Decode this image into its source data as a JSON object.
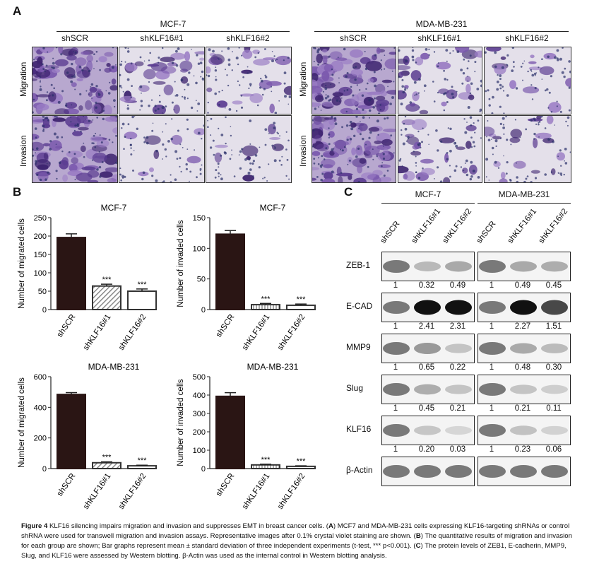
{
  "panelA": {
    "letter": "A",
    "groups": [
      {
        "name": "MCF-7",
        "columns": [
          "shSCR",
          "shKLF16#1",
          "shKLF16#2"
        ]
      },
      {
        "name": "MDA-MB-231",
        "columns": [
          "shSCR",
          "shKLF16#1",
          "shKLF16#2"
        ]
      }
    ],
    "rows": [
      "Migration",
      "Invasion"
    ]
  },
  "panelB": {
    "letter": "B"
  },
  "chart_data": [
    {
      "type": "bar",
      "title": "MCF-7",
      "ylabel": "Number of migrated cells",
      "categories": [
        "shSCR",
        "shKLF16#1",
        "shKLF16#2"
      ],
      "values": [
        196,
        64,
        50
      ],
      "errors": [
        10,
        5,
        6
      ],
      "ylim": [
        0,
        250
      ],
      "yticks": [
        "0",
        "50",
        "100",
        "150",
        "200",
        "250"
      ],
      "significance": [
        "",
        "***",
        "***"
      ],
      "bar_styles": [
        "solid",
        "hatched",
        "open"
      ]
    },
    {
      "type": "bar",
      "title": "MCF-7",
      "ylabel": "Number of invaded cells",
      "categories": [
        "shSCR",
        "shKLF16#1",
        "shKLF16#2"
      ],
      "values": [
        123,
        8,
        7
      ],
      "errors": [
        6,
        2,
        2
      ],
      "ylim": [
        0,
        150
      ],
      "yticks": [
        "0",
        "50",
        "100",
        "150"
      ],
      "significance": [
        "",
        "***",
        "***"
      ],
      "bar_styles": [
        "solid",
        "striped",
        "open"
      ]
    },
    {
      "type": "bar",
      "title": "MDA-MB-231",
      "ylabel": "Number of migrated cells",
      "categories": [
        "shSCR",
        "shKLF16#1",
        "shKLF16#2"
      ],
      "values": [
        484,
        38,
        18
      ],
      "errors": [
        12,
        6,
        4
      ],
      "ylim": [
        0,
        600
      ],
      "yticks": [
        "0",
        "200",
        "400",
        "600"
      ],
      "significance": [
        "",
        "***",
        "***"
      ],
      "bar_styles": [
        "solid",
        "hatched",
        "open"
      ]
    },
    {
      "type": "bar",
      "title": "MDA-MB-231",
      "ylabel": "Number of invaded cells",
      "categories": [
        "shSCR",
        "shKLF16#1",
        "shKLF16#2"
      ],
      "values": [
        393,
        20,
        12
      ],
      "errors": [
        20,
        4,
        3
      ],
      "ylim": [
        0,
        500
      ],
      "yticks": [
        "0",
        "100",
        "200",
        "300",
        "400",
        "500"
      ],
      "significance": [
        "",
        "***",
        "***"
      ],
      "bar_styles": [
        "solid",
        "striped",
        "open"
      ]
    }
  ],
  "panelC": {
    "letter": "C",
    "groups": [
      "MCF-7",
      "MDA-MB-231"
    ],
    "columns": [
      "shSCR",
      "shKLF16#1",
      "shKLF16#2",
      "shSCR",
      "shKLF16#1",
      "shKLF16#2"
    ],
    "rows": [
      {
        "label": "ZEB-1",
        "mcf7": [
          "1",
          "0.32",
          "0.49"
        ],
        "mda": [
          "1",
          "0.49",
          "0.45"
        ]
      },
      {
        "label": "E-CAD",
        "mcf7": [
          "1",
          "2.41",
          "2.31"
        ],
        "mda": [
          "1",
          "2.27",
          "1.51"
        ]
      },
      {
        "label": "MMP9",
        "mcf7": [
          "1",
          "0.65",
          "0.22"
        ],
        "mda": [
          "1",
          "0.48",
          "0.30"
        ]
      },
      {
        "label": "Slug",
        "mcf7": [
          "1",
          "0.45",
          "0.21"
        ],
        "mda": [
          "1",
          "0.21",
          "0.11"
        ]
      },
      {
        "label": "KLF16",
        "mcf7": [
          "1",
          "0.20",
          "0.03"
        ],
        "mda": [
          "1",
          "0.23",
          "0.06"
        ]
      },
      {
        "label": "β-Actin",
        "mcf7": [
          "",
          "",
          ""
        ],
        "mda": [
          "",
          "",
          ""
        ]
      }
    ]
  },
  "caption": {
    "head": "Figure 4",
    "t1": " KLF16 silencing impairs migration and invasion and suppresses EMT in breast cancer cells. (",
    "A": "A",
    "t2": ") MCF7 and MDA-MB-231 cells expressing KLF16-targeting shRNAs or control shRNA were used for transwell migration and invasion assays. Representative images after 0.1% crystal violet staining are shown. (",
    "B": "B",
    "t3": ") The quantitative results of migration and invasion for each group are shown; Bar graphs represent mean ± standard deviation of three independent experiments (t-test, *** p<0.001). (",
    "C": "C",
    "t4": ") The protein levels of ZEB1, E-cadherin, MMP9, Slug, and KLF16 were assessed by Western blotting. β-Actin was used as the internal control in Western blotting analysis."
  }
}
